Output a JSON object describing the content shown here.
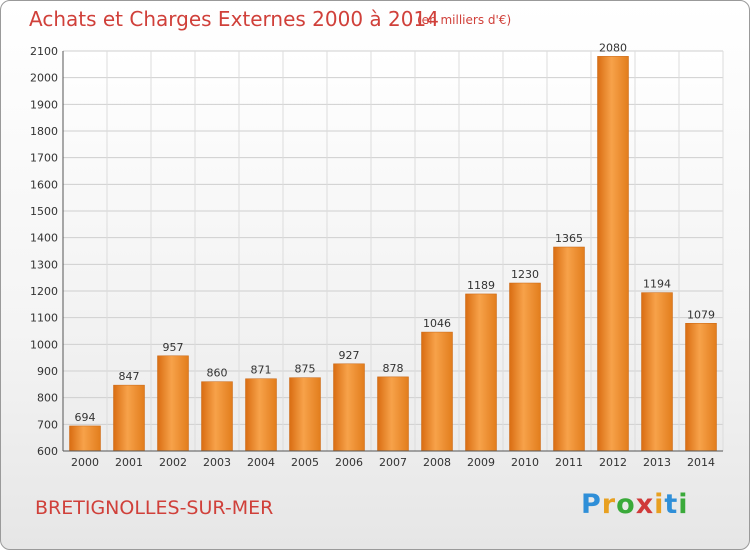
{
  "header": {
    "title": "Achats et Charges Externes 2000 à 2014",
    "subtitle": "(en milliers d'€)"
  },
  "footer": {
    "city": "BRETIGNOLLES-SUR-MER",
    "logo": [
      "P",
      "r",
      "o",
      "x",
      "i",
      "t",
      "i"
    ],
    "logo_colors": [
      "#2f8fd8",
      "#e8a020",
      "#3aaa3a",
      "#d03a3a",
      "#e8a020",
      "#2f8fd8",
      "#3aaa3a"
    ]
  },
  "chart_data": {
    "type": "bar",
    "title": "Achats et Charges Externes 2000 à 2014",
    "subtitle": "(en milliers d'€)",
    "categories": [
      "2000",
      "2001",
      "2002",
      "2003",
      "2004",
      "2005",
      "2006",
      "2007",
      "2008",
      "2009",
      "2010",
      "2011",
      "2012",
      "2013",
      "2014"
    ],
    "values": [
      694,
      847,
      957,
      860,
      871,
      875,
      927,
      878,
      1046,
      1189,
      1230,
      1365,
      2080,
      1194,
      1079
    ],
    "ylim": [
      600,
      2100
    ],
    "yticks": [
      600,
      700,
      800,
      900,
      1000,
      1100,
      1200,
      1300,
      1400,
      1500,
      1600,
      1700,
      1800,
      1900,
      2000,
      2100
    ],
    "grid": true,
    "bar_color": "#f0902a"
  }
}
